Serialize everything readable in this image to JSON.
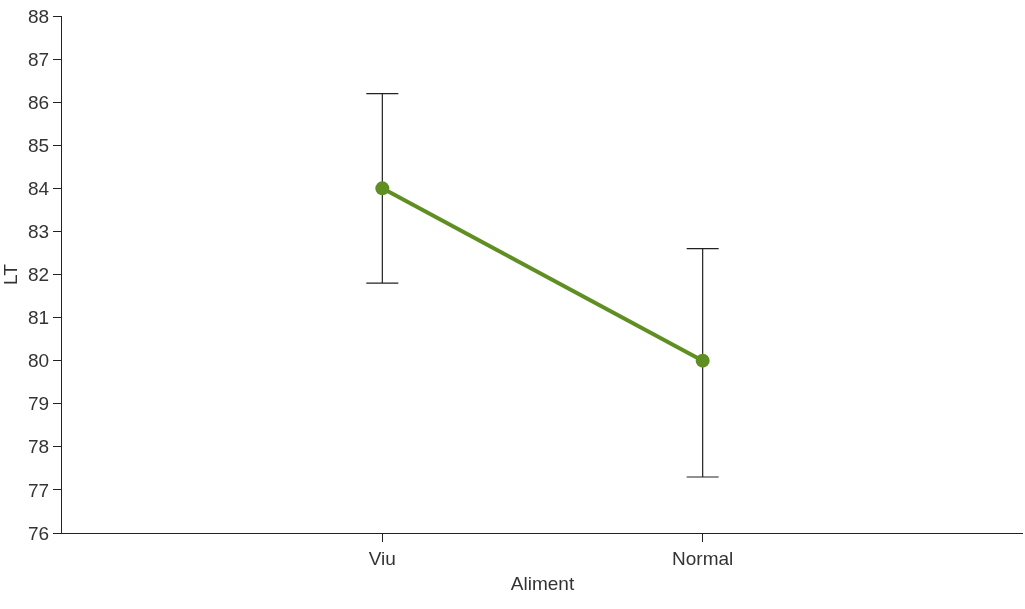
{
  "chart_data": {
    "type": "line",
    "xlabel": "Aliment",
    "ylabel": "LT",
    "categories": [
      "Viu",
      "Normal"
    ],
    "series": [
      {
        "color": "#5f8f22",
        "values": [
          84.0,
          80.0
        ],
        "errors": [
          [
            81.8,
            86.2
          ],
          [
            77.3,
            82.6
          ]
        ]
      }
    ],
    "ylim": [
      76,
      88
    ],
    "yticks": [
      76,
      77,
      78,
      79,
      80,
      81,
      82,
      83,
      84,
      85,
      86,
      87,
      88
    ],
    "marker": "circle",
    "line_style": "solid"
  }
}
